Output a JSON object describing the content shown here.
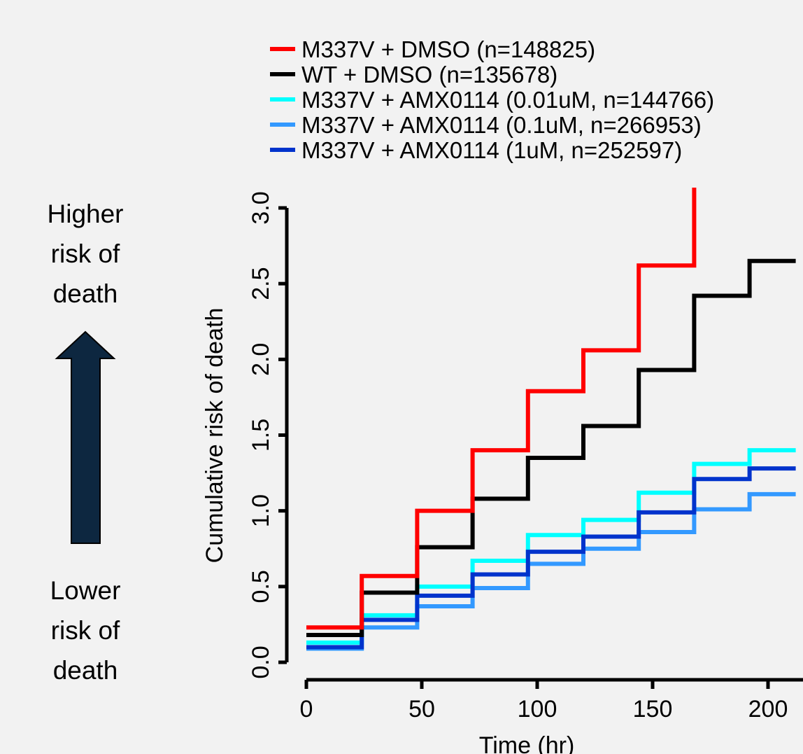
{
  "annotations": {
    "higher": [
      "Higher",
      "risk of",
      "death"
    ],
    "lower": [
      "Lower",
      "risk of",
      "death"
    ],
    "arrow_color": "#0d2740"
  },
  "chart_data": {
    "type": "line",
    "step": true,
    "title": "",
    "xlabel": "Time (hr)",
    "ylabel": "Cumulative risk of death",
    "xlim": [
      0,
      212
    ],
    "ylim": [
      0,
      3.0
    ],
    "xticks": [
      0,
      50,
      100,
      150,
      200
    ],
    "yticks": [
      0.0,
      0.5,
      1.0,
      1.5,
      2.0,
      2.5,
      3.0
    ],
    "xtick_labels": [
      "0",
      "50",
      "100",
      "150",
      "200"
    ],
    "ytick_labels": [
      "0.0",
      "0.5",
      "1.0",
      "1.5",
      "2.0",
      "2.5",
      "3.0"
    ],
    "legend_position": "top",
    "series": [
      {
        "name": "M337V + DMSO (n=148825)",
        "color": "#ff0000",
        "x": [
          0,
          24,
          48,
          72,
          96,
          120,
          144,
          168
        ],
        "y": [
          0.23,
          0.57,
          1.0,
          1.4,
          1.79,
          2.06,
          2.62,
          3.2
        ]
      },
      {
        "name": "WT + DMSO (n=135678)",
        "color": "#000000",
        "x": [
          0,
          24,
          48,
          72,
          96,
          120,
          144,
          168,
          192,
          212
        ],
        "y": [
          0.18,
          0.46,
          0.76,
          1.08,
          1.35,
          1.56,
          1.93,
          2.42,
          2.65,
          2.65
        ]
      },
      {
        "name": "M337V + AMX0114 (0.01uM, n=144766)",
        "color": "#00ffff",
        "x": [
          0,
          24,
          48,
          72,
          96,
          120,
          144,
          168,
          192,
          212
        ],
        "y": [
          0.13,
          0.31,
          0.5,
          0.67,
          0.84,
          0.94,
          1.12,
          1.31,
          1.4,
          1.4
        ]
      },
      {
        "name": "M337V + AMX0114 (0.1uM, n=266953)",
        "color": "#3399ff",
        "x": [
          0,
          24,
          48,
          72,
          96,
          120,
          144,
          168,
          192,
          212
        ],
        "y": [
          0.09,
          0.23,
          0.37,
          0.49,
          0.65,
          0.75,
          0.86,
          1.01,
          1.11,
          1.11
        ]
      },
      {
        "name": "M337V + AMX0114 (1uM, n=252597)",
        "color": "#0033cc",
        "x": [
          0,
          24,
          48,
          72,
          96,
          120,
          144,
          168,
          192,
          212
        ],
        "y": [
          0.1,
          0.28,
          0.44,
          0.58,
          0.73,
          0.83,
          0.99,
          1.21,
          1.28,
          1.28
        ]
      }
    ]
  }
}
